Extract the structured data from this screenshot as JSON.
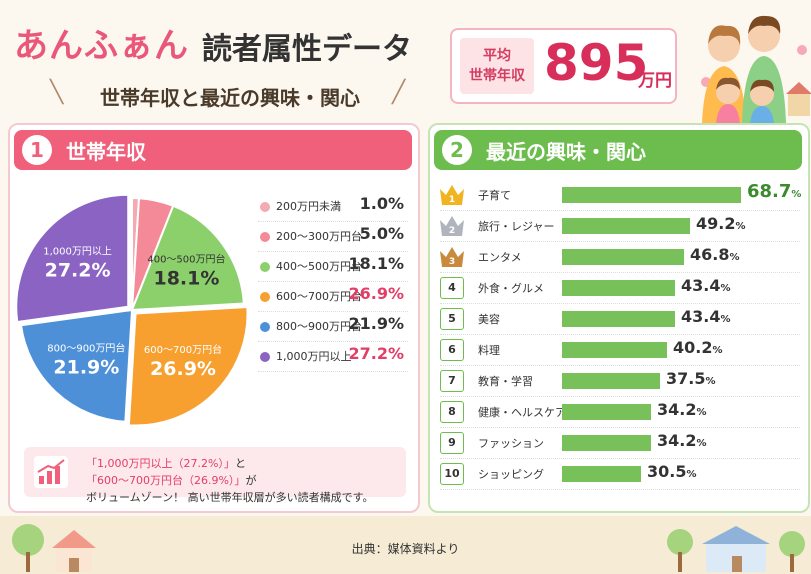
{
  "header": {
    "brand": "あんふぁん",
    "title": "読者属性データ",
    "subtitle": "世帯年収と最近の興味・関心",
    "avg_income_label_line1": "平均",
    "avg_income_label_line2": "世帯年収",
    "avg_income_value": "895",
    "avg_income_unit": "万円"
  },
  "section1": {
    "number": "1",
    "title": "世帯年収",
    "legend": [
      {
        "label": "200万円未満",
        "value": "1.0%",
        "color": "#f5a9b0",
        "highlight": false
      },
      {
        "label": "200～300万円台",
        "value": "5.0%",
        "color": "#f48a98",
        "highlight": false
      },
      {
        "label": "400～500万円台",
        "value": "18.1%",
        "color": "#8cd06c",
        "highlight": false
      },
      {
        "label": "600～700万円台",
        "value": "26.9%",
        "color": "#f7a030",
        "highlight": true
      },
      {
        "label": "800～900万円台",
        "value": "21.9%",
        "color": "#4d90d8",
        "highlight": false
      },
      {
        "label": "1,000万円以上",
        "value": "27.2%",
        "color": "#8a63c3",
        "highlight": true
      }
    ],
    "note_line1_a": "「1,000万円以上（27.2%）」",
    "note_line1_b": "と",
    "note_line1_c": "「600～700万円台（26.9%）」",
    "note_line1_d": "が",
    "note_line2": "ボリュームゾーン！ 高い世帯年収層が多い読者構成です。"
  },
  "section2": {
    "number": "2",
    "title": "最近の興味・関心",
    "items": [
      {
        "rank": "1",
        "label": "子育て",
        "value": "68.7",
        "unit": "%"
      },
      {
        "rank": "2",
        "label": "旅行・レジャー",
        "value": "49.2",
        "unit": "%"
      },
      {
        "rank": "3",
        "label": "エンタメ",
        "value": "46.8",
        "unit": "%"
      },
      {
        "rank": "4",
        "label": "外食・グルメ",
        "value": "43.4",
        "unit": "%"
      },
      {
        "rank": "5",
        "label": "美容",
        "value": "43.4",
        "unit": "%"
      },
      {
        "rank": "6",
        "label": "料理",
        "value": "40.2",
        "unit": "%"
      },
      {
        "rank": "7",
        "label": "教育・学習",
        "value": "37.5",
        "unit": "%"
      },
      {
        "rank": "8",
        "label": "健康・ヘルスケア",
        "value": "34.2",
        "unit": "%"
      },
      {
        "rank": "9",
        "label": "ファッション",
        "value": "34.2",
        "unit": "%"
      },
      {
        "rank": "10",
        "label": "ショッピング",
        "value": "30.5",
        "unit": "%"
      }
    ]
  },
  "footer": {
    "source": "出典：媒体資料より"
  },
  "colors": {
    "pink": "#f0607a",
    "green": "#6cbd4d",
    "accent": "#e43d67"
  },
  "chart_data": [
    {
      "type": "pie",
      "title": "世帯年収",
      "categories": [
        "200万円未満",
        "200～300万円台",
        "400～500万円台",
        "600～700万円台",
        "800～900万円台",
        "1,000万円以上"
      ],
      "values": [
        1.0,
        5.0,
        18.1,
        26.9,
        21.9,
        27.2
      ],
      "slice_labels": [
        {
          "name": "",
          "value": ""
        },
        {
          "name": "",
          "value": ""
        },
        {
          "name": "400～500万円台",
          "value": "18.1%"
        },
        {
          "name": "600～700万円台",
          "value": "26.9%"
        },
        {
          "name": "800～900万円台",
          "value": "21.9%"
        },
        {
          "name": "1,000万円以上",
          "value": "27.2%"
        }
      ],
      "legend": "right"
    },
    {
      "type": "bar",
      "orientation": "horizontal",
      "title": "最近の興味・関心",
      "categories": [
        "子育て",
        "旅行・レジャー",
        "エンタメ",
        "外食・グルメ",
        "美容",
        "料理",
        "教育・学習",
        "健康・ヘルスケア",
        "ファッション",
        "ショッピング"
      ],
      "values": [
        68.7,
        49.2,
        46.8,
        43.4,
        43.4,
        40.2,
        37.5,
        34.2,
        34.2,
        30.5
      ],
      "xlim": [
        0,
        100
      ]
    }
  ]
}
